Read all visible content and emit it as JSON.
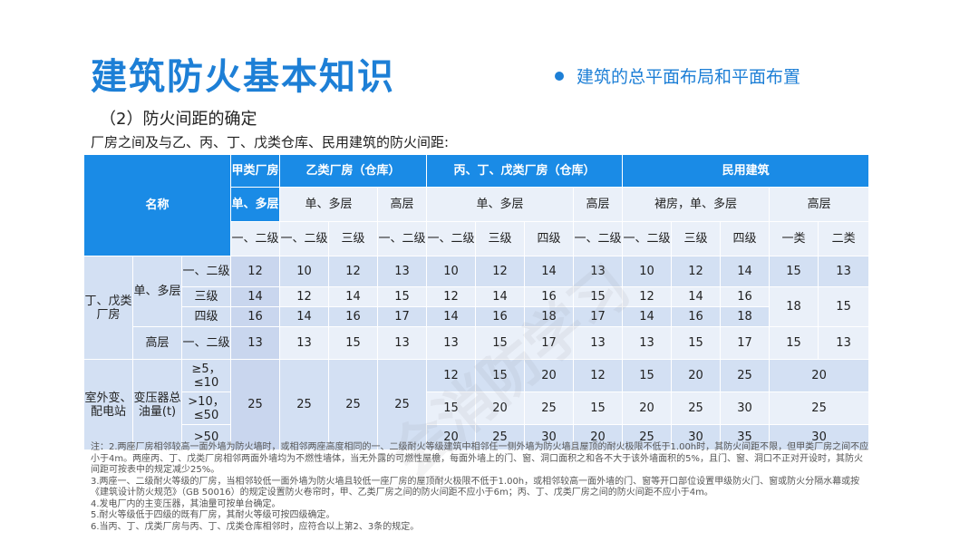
{
  "slide": {
    "title": "建筑防火基本知识",
    "bullet": "建筑的总平面布局和平面布置",
    "subtitle": "（2）防火间距的确定",
    "caption": "厂房之间及与乙、丙、丁、戊类仓库、民用建筑的防火间距:"
  },
  "table": {
    "col_groups": {
      "name": "名称",
      "jia": "甲类厂房",
      "yi": "乙类厂房（仓库）",
      "bing": "丙、丁、戊类厂房（仓库）",
      "min": "民用建筑"
    },
    "sub": {
      "jia_dan": "单、多层",
      "yi_dan": "单、多层",
      "yi_gao": "高层",
      "bing_dan": "单、多层",
      "bing_gao": "高层",
      "min_qun": "裙房，单、多层",
      "min_gao": "高层"
    },
    "grades": [
      "一、二级",
      "一、二级",
      "三级",
      "一、二级",
      "一、二级",
      "三级",
      "四级",
      "一、二级",
      "一、二级",
      "三级",
      "四级",
      "一类",
      "二类"
    ],
    "rows": {
      "ding_wu": "丁、戊类厂房",
      "dan_duo": "单、多层",
      "gao": "高层",
      "g12": "一、二级",
      "g3": "三级",
      "g4": "四级",
      "g12b": "一、二级",
      "r1": [
        "12",
        "10",
        "12",
        "13",
        "10",
        "12",
        "14",
        "13",
        "10",
        "12",
        "14",
        "15",
        "13"
      ],
      "r2": [
        "14",
        "12",
        "14",
        "15",
        "12",
        "14",
        "16",
        "15",
        "12",
        "14",
        "16"
      ],
      "r3": [
        "16",
        "14",
        "16",
        "17",
        "14",
        "16",
        "18",
        "17",
        "14",
        "16",
        "18"
      ],
      "r23_merge": [
        "18",
        "15"
      ],
      "r4": [
        "13",
        "13",
        "15",
        "13",
        "13",
        "15",
        "17",
        "13",
        "13",
        "15",
        "17",
        "15",
        "13"
      ],
      "station": "室外变、配电站",
      "transformer": "变压器总油量(t)",
      "t1": "≥5，≤10",
      "t2": ">10，≤50",
      "t3": ">50",
      "left_merge": [
        "25",
        "25",
        "25",
        "25"
      ],
      "s1": [
        "12",
        "15",
        "20",
        "12",
        "15",
        "20",
        "25"
      ],
      "s1_merge": "20",
      "s2": [
        "15",
        "20",
        "25",
        "15",
        "20",
        "25",
        "30"
      ],
      "s2_merge": "25",
      "s3": [
        "20",
        "25",
        "30",
        "20",
        "25",
        "30",
        "35"
      ],
      "s3_merge": "30"
    }
  },
  "notes": [
    "注：2.两座厂房相邻较高一面外墙为防火墙时，或相邻两座高度相同的一、二级耐火等级建筑中相邻任一侧外墙为防火墙且屋顶的耐火极限不低于1.00h时，其防火间距不限，但甲类厂房之间不应小于4m。两座丙、丁、戊类厂房相邻两面外墙均为不燃性墙体，当无外露的可燃性屋檐，每面外墙上的门、窗、洞口面积之和各不大于该外墙面积的5%，且门、窗、洞口不正对开设时，其防火间距可按表中的规定减少25%。",
    "3.两座一、二级耐火等级的厂房，当相邻较低一面外墙为防火墙且较低一座厂房的屋顶耐火极限不低于1.00h，或相邻较高一面外墙的门、窗等开口部位设置甲级防火门、窗或防火分隔水幕或按《建筑设计防火规范》（GB 50016）的规定设置防火卷帘时，甲、乙类厂房之间的防火间距不应小于6m；丙、丁、戊类厂房之间的防火间距不应小于4m。",
    "4.发电厂内的主变压器，其油量可按单台确定。",
    "5.耐火等级低于四级的既有厂房，其耐火等级可按四级确定。",
    "6.当丙、丁、戊类厂房与丙、丁、戊类仓库相邻时，应符合以上第2、3条的规定。"
  ],
  "watermark": "会消防学习",
  "colors": {
    "accent": "#1d7fd6",
    "header": "#1a8be6",
    "cell": "#d3e0f3",
    "cell_alt": "#eaf0f9"
  }
}
